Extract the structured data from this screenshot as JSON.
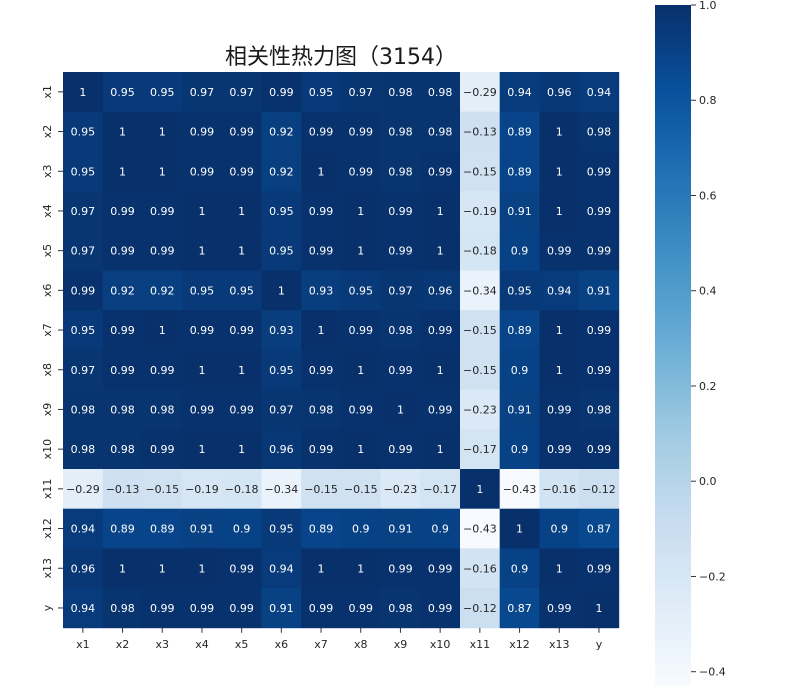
{
  "chart_data": {
    "type": "heatmap",
    "title": "相关性热力图（3154）",
    "row_labels": [
      "x1",
      "x2",
      "x3",
      "x4",
      "x5",
      "x6",
      "x7",
      "x8",
      "x9",
      "x10",
      "x11",
      "x12",
      "x13",
      "y"
    ],
    "col_labels": [
      "x1",
      "x2",
      "x3",
      "x4",
      "x5",
      "x6",
      "x7",
      "x8",
      "x9",
      "x10",
      "x11",
      "x12",
      "x13",
      "y"
    ],
    "values": [
      [
        1,
        0.95,
        0.95,
        0.97,
        0.97,
        0.99,
        0.95,
        0.97,
        0.98,
        0.98,
        -0.29,
        0.94,
        0.96,
        0.94
      ],
      [
        0.95,
        1,
        1,
        0.99,
        0.99,
        0.92,
        0.99,
        0.99,
        0.98,
        0.98,
        -0.13,
        0.89,
        1,
        0.98
      ],
      [
        0.95,
        1,
        1,
        0.99,
        0.99,
        0.92,
        1,
        0.99,
        0.98,
        0.99,
        -0.15,
        0.89,
        1,
        0.99
      ],
      [
        0.97,
        0.99,
        0.99,
        1,
        1,
        0.95,
        0.99,
        1,
        0.99,
        1,
        -0.19,
        0.91,
        1,
        0.99
      ],
      [
        0.97,
        0.99,
        0.99,
        1,
        1,
        0.95,
        0.99,
        1,
        0.99,
        1,
        -0.18,
        0.9,
        0.99,
        0.99
      ],
      [
        0.99,
        0.92,
        0.92,
        0.95,
        0.95,
        1,
        0.93,
        0.95,
        0.97,
        0.96,
        -0.34,
        0.95,
        0.94,
        0.91
      ],
      [
        0.95,
        0.99,
        1,
        0.99,
        0.99,
        0.93,
        1,
        0.99,
        0.98,
        0.99,
        -0.15,
        0.89,
        1,
        0.99
      ],
      [
        0.97,
        0.99,
        0.99,
        1,
        1,
        0.95,
        0.99,
        1,
        0.99,
        1,
        -0.15,
        0.9,
        1,
        0.99
      ],
      [
        0.98,
        0.98,
        0.98,
        0.99,
        0.99,
        0.97,
        0.98,
        0.99,
        1,
        0.99,
        -0.23,
        0.91,
        0.99,
        0.98
      ],
      [
        0.98,
        0.98,
        0.99,
        1,
        1,
        0.96,
        0.99,
        1,
        0.99,
        1,
        -0.17,
        0.9,
        0.99,
        0.99
      ],
      [
        -0.29,
        -0.13,
        -0.15,
        -0.19,
        -0.18,
        -0.34,
        -0.15,
        -0.15,
        -0.23,
        -0.17,
        1,
        -0.43,
        -0.16,
        -0.12
      ],
      [
        0.94,
        0.89,
        0.89,
        0.91,
        0.9,
        0.95,
        0.89,
        0.9,
        0.91,
        0.9,
        -0.43,
        1,
        0.9,
        0.87
      ],
      [
        0.96,
        1,
        1,
        1,
        0.99,
        0.94,
        1,
        1,
        0.99,
        0.99,
        -0.16,
        0.9,
        1,
        0.99
      ],
      [
        0.94,
        0.98,
        0.99,
        0.99,
        0.99,
        0.91,
        0.99,
        0.99,
        0.98,
        0.99,
        -0.12,
        0.87,
        0.99,
        1
      ]
    ],
    "colorbar": {
      "range": [
        -0.43,
        1.0
      ],
      "ticks": [
        1.0,
        0.8,
        0.6,
        0.4,
        0.2,
        0.0,
        -0.2,
        -0.4
      ],
      "tick_labels": [
        "1.0",
        "0.8",
        "0.6",
        "0.4",
        "0.2",
        "0.0",
        "−0.2",
        "−0.4"
      ],
      "colormap": "Blues"
    },
    "colormap_stops": [
      "#f7fbff",
      "#deebf7",
      "#c6dbef",
      "#9ecae1",
      "#6baed6",
      "#4292c6",
      "#2171b5",
      "#08519c",
      "#08306b"
    ]
  }
}
